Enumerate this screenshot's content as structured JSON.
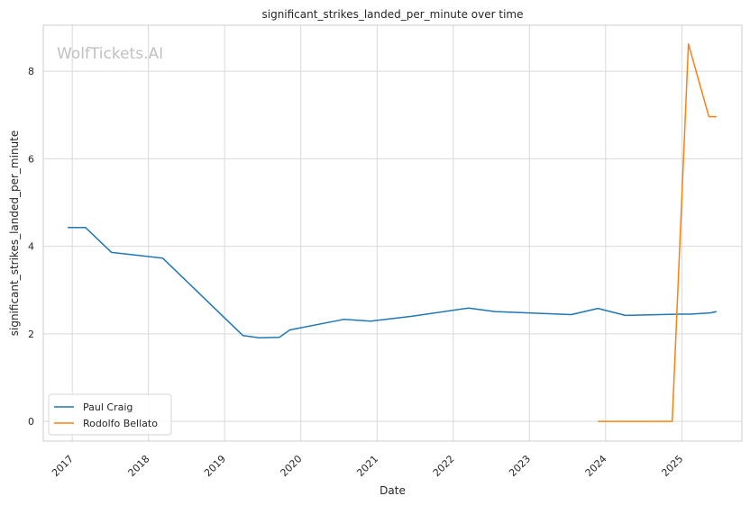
{
  "watermark": "WolfTickets.AI",
  "chart_data": {
    "type": "line",
    "title": "significant_strikes_landed_per_minute over time",
    "xlabel": "Date",
    "ylabel": "significant_strikes_landed_per_minute",
    "x_ticks": [
      "2017",
      "2018",
      "2019",
      "2020",
      "2021",
      "2022",
      "2023",
      "2024",
      "2025"
    ],
    "y_ticks": [
      "0",
      "2",
      "4",
      "6",
      "8"
    ],
    "xlim": [
      "2016-08-15",
      "2025-10-15"
    ],
    "ylim": [
      -0.45,
      9.05
    ],
    "grid": true,
    "legend_position": "lower-left",
    "series": [
      {
        "name": "Paul Craig",
        "color": "#1f77b4",
        "points": [
          [
            "2016-12-10",
            4.43
          ],
          [
            "2017-03-05",
            4.43
          ],
          [
            "2017-07-08",
            3.86
          ],
          [
            "2018-03-10",
            3.73
          ],
          [
            "2019-03-30",
            1.96
          ],
          [
            "2019-06-15",
            1.91
          ],
          [
            "2019-09-20",
            1.92
          ],
          [
            "2019-11-10",
            2.09
          ],
          [
            "2020-07-25",
            2.33
          ],
          [
            "2020-11-30",
            2.29
          ],
          [
            "2021-06-15",
            2.4
          ],
          [
            "2022-03-15",
            2.59
          ],
          [
            "2022-07-20",
            2.51
          ],
          [
            "2023-07-20",
            2.44
          ],
          [
            "2023-11-25",
            2.58
          ],
          [
            "2024-04-05",
            2.42
          ],
          [
            "2024-12-15",
            2.45
          ],
          [
            "2025-02-10",
            2.45
          ],
          [
            "2025-05-20",
            2.48
          ],
          [
            "2025-06-15",
            2.51
          ]
        ]
      },
      {
        "name": "Rodolfo Bellato",
        "color": "#ff7f0e",
        "points": [
          [
            "2023-11-25",
            0.0
          ],
          [
            "2024-11-15",
            0.0
          ],
          [
            "2025-02-01",
            8.62
          ],
          [
            "2025-05-10",
            6.96
          ],
          [
            "2025-06-15",
            6.96
          ]
        ]
      }
    ]
  }
}
